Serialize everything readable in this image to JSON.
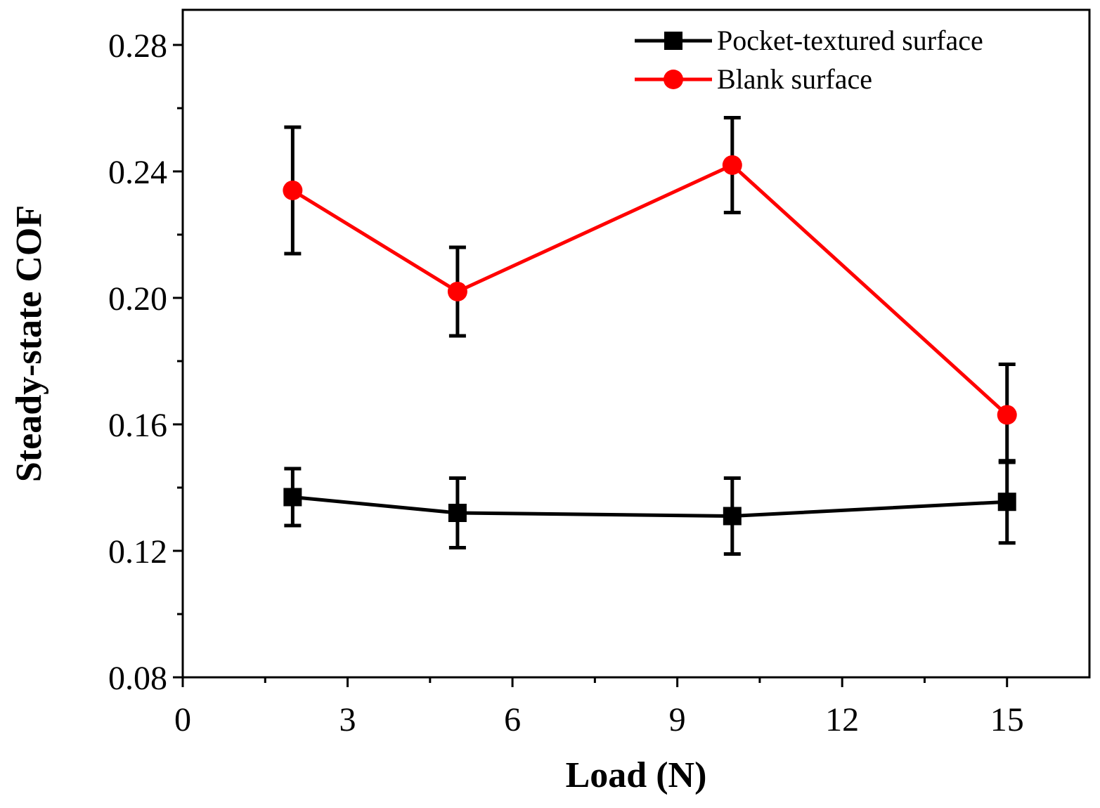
{
  "chart_data": {
    "type": "line",
    "title": "",
    "xlabel": "Load (N)",
    "ylabel": "Steady-state COF",
    "xlim": [
      0,
      16.5
    ],
    "ylim": [
      0.08,
      0.2911
    ],
    "xticks": [
      0,
      3,
      6,
      9,
      12,
      15
    ],
    "xtick_labels": [
      "0",
      "3",
      "6",
      "9",
      "12",
      "15"
    ],
    "yticks": [
      0.08,
      0.12,
      0.16,
      0.2,
      0.24,
      0.28
    ],
    "ytick_labels": [
      "0.08",
      "0.12",
      "0.16",
      "0.20",
      "0.24",
      "0.28"
    ],
    "legend_position": "top-right",
    "series": [
      {
        "name": "Pocket-textured surface",
        "color": "#000000",
        "marker": "square",
        "x": [
          2,
          5,
          10,
          15
        ],
        "y": [
          0.137,
          0.132,
          0.131,
          0.1355
        ],
        "err_low": [
          0.128,
          0.121,
          0.119,
          0.1225
        ],
        "err_high": [
          0.146,
          0.143,
          0.143,
          0.1485
        ]
      },
      {
        "name": "Blank surface",
        "color": "#ff0000",
        "marker": "circle",
        "x": [
          2,
          5,
          10,
          15
        ],
        "y": [
          0.234,
          0.202,
          0.242,
          0.163
        ],
        "err_low": [
          0.214,
          0.188,
          0.227,
          0.148
        ],
        "err_high": [
          0.254,
          0.216,
          0.257,
          0.179
        ]
      }
    ]
  }
}
